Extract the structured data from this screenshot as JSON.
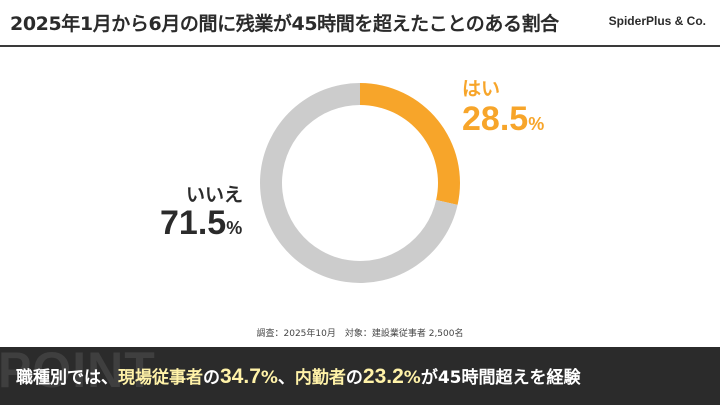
{
  "header": {
    "title": "2025年1月から6月の間に残業が45時間を超えたことのある割合",
    "brand": "SpiderPlus & Co."
  },
  "chart_data": {
    "type": "pie",
    "donut": true,
    "categories": [
      "はい",
      "いいえ"
    ],
    "values": [
      28.5,
      71.5
    ],
    "unit": "%",
    "colors": [
      "#f7a52a",
      "#cccccc"
    ],
    "labels": {
      "yes": {
        "label": "はい",
        "value": "28.5",
        "unit": "%"
      },
      "no": {
        "label": "いいえ",
        "value": "71.5",
        "unit": "%"
      }
    }
  },
  "survey_note": "調査：2025年10月　対象：建設業従事者 2,500名",
  "point": {
    "watermark": "POINT",
    "prefix": "職種別では、",
    "group1": "現場従事者",
    "particle1": "の",
    "value1": "34.7",
    "unit1": "%",
    "sep": "、",
    "group2": "内勤者",
    "particle2": "の",
    "value2": "23.2",
    "unit2": "%",
    "suffix": "が45時間超えを経験"
  }
}
